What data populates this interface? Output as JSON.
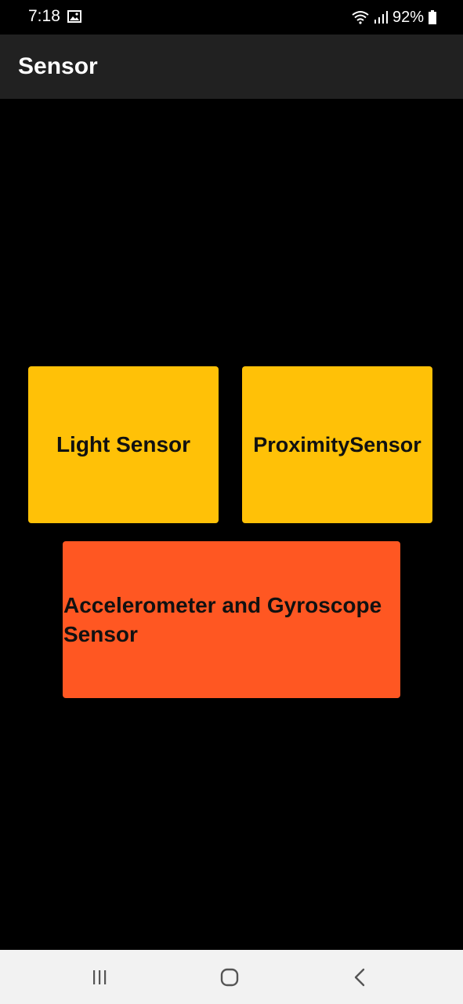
{
  "status_bar": {
    "time": "7:18",
    "battery": "92%",
    "icons": [
      "gallery-icon",
      "wifi-icon",
      "signal-icon",
      "battery-icon"
    ]
  },
  "app_bar": {
    "title": "Sensor",
    "background": "#212121"
  },
  "tiles": [
    {
      "label": "Light Sensor",
      "color": "#FFC107"
    },
    {
      "label": "ProximitySensor",
      "color": "#FFC107"
    },
    {
      "label": "Accelerometer and Gyroscope Sensor",
      "color": "#FF5722"
    }
  ],
  "nav_bar": {
    "buttons": [
      "recents-icon",
      "home-icon",
      "back-icon"
    ]
  }
}
